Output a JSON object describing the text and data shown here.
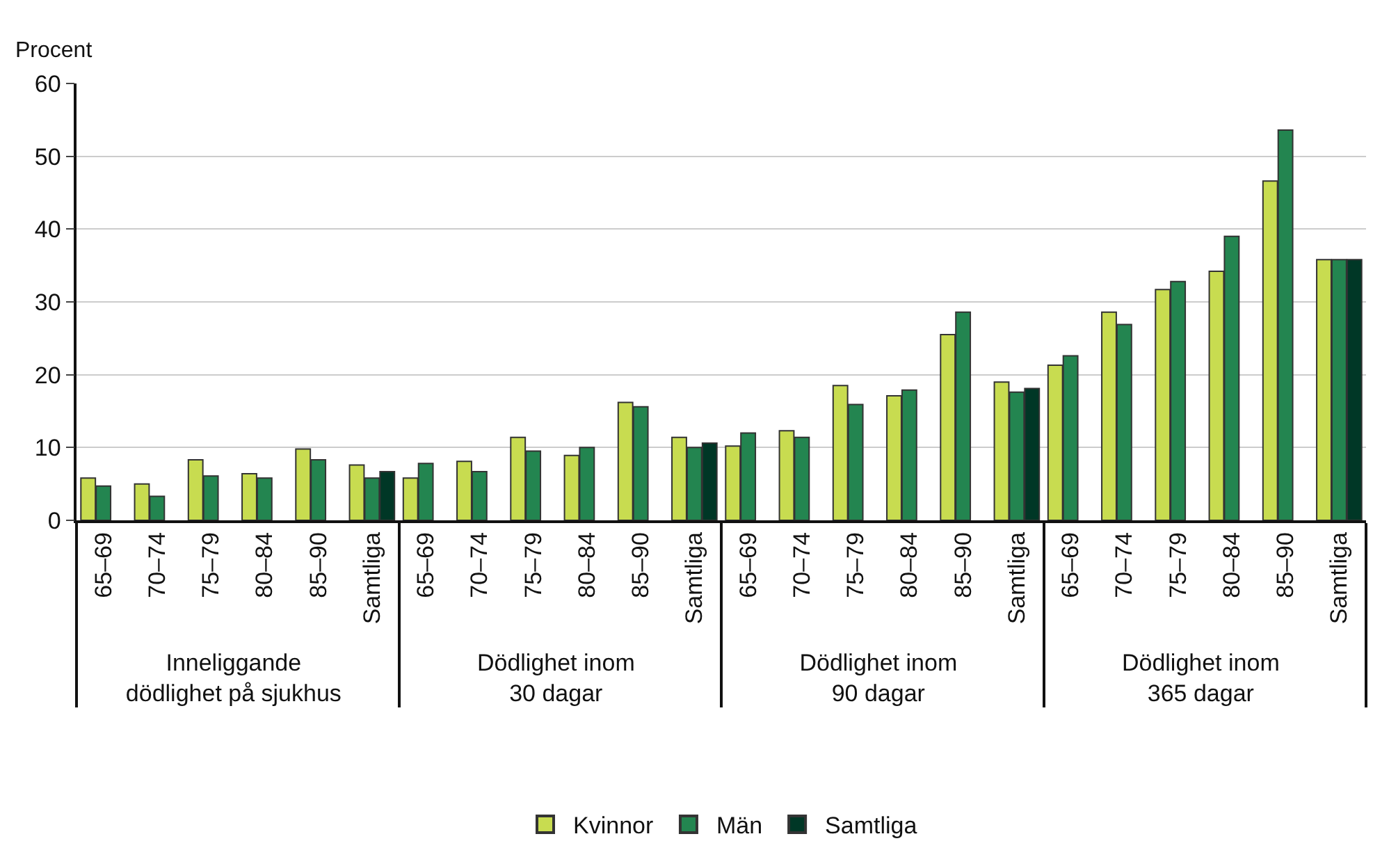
{
  "chart_data": {
    "type": "bar",
    "ylabel": "Procent",
    "categories": [
      "65–69",
      "70–74",
      "75–79",
      "80–84",
      "85–90",
      "Samtliga",
      "65–69",
      "70–74",
      "75–79",
      "80–84",
      "85–90",
      "Samtliga",
      "65–69",
      "70–74",
      "75–79",
      "80–84",
      "85–90",
      "Samtliga",
      "65–69",
      "70–74",
      "75–79",
      "80–84",
      "85–90",
      "Samtliga"
    ],
    "annotations": [
      "Inneliggande\ndödlighet på sjukhus",
      "Dödlighet inom\n30 dagar",
      "Dödlighet inom\n90 dagar",
      "Dödlighet inom\n365 dagar"
    ],
    "series": [
      {
        "name": "Kvinnor",
        "color": "#c8dc50",
        "values": [
          5.8,
          5.0,
          8.3,
          6.4,
          9.8,
          7.6,
          5.8,
          8.1,
          11.4,
          8.9,
          16.2,
          11.4,
          10.2,
          12.3,
          18.5,
          17.1,
          25.5,
          19.0,
          21.3,
          28.6,
          31.7,
          34.2,
          46.6,
          35.8
        ]
      },
      {
        "name": "Män",
        "color": "#238550",
        "values": [
          4.7,
          3.3,
          6.1,
          5.8,
          8.3,
          5.8,
          7.8,
          6.7,
          9.5,
          10.0,
          15.6,
          10.0,
          12.0,
          11.4,
          15.9,
          17.9,
          28.6,
          17.6,
          22.6,
          26.9,
          32.8,
          39.0,
          53.6,
          35.8
        ]
      },
      {
        "name": "Samtliga",
        "color": "#003726",
        "values": [
          null,
          null,
          null,
          null,
          null,
          6.7,
          null,
          null,
          null,
          null,
          null,
          10.6,
          null,
          null,
          null,
          null,
          null,
          18.1,
          null,
          null,
          null,
          null,
          null,
          35.8
        ]
      }
    ],
    "ylim": [
      0,
      60
    ],
    "yticks": [
      0,
      10,
      20,
      30,
      40,
      50,
      60
    ],
    "grid": "y",
    "legend": "bottom"
  }
}
